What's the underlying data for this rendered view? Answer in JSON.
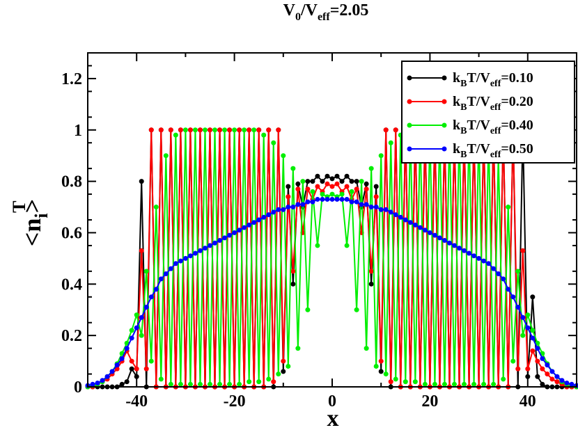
{
  "chart_data": {
    "type": "line",
    "title": {
      "main": "V",
      "sub0": "0",
      "slash": "/V",
      "sub1": "eff",
      "rest": "=2.05"
    },
    "xlabel": "x",
    "ylabel": {
      "main": "<n",
      "sub": "i",
      "close": ">",
      "sup": "T"
    },
    "xlim": [
      -50,
      50
    ],
    "ylim": [
      0,
      1.3
    ],
    "xticks": [
      -40,
      -20,
      0,
      20,
      40
    ],
    "xtick_labels": [
      "-40",
      "-20",
      "0",
      "20",
      "40"
    ],
    "yticks": [
      0,
      0.2,
      0.4,
      0.6,
      0.8,
      1.0,
      1.2
    ],
    "ytick_labels": [
      "0",
      "0.2",
      "0.4",
      "0.6",
      "0.8",
      "1",
      "1.2"
    ],
    "legend_position": "top-right",
    "series": [
      {
        "name": "kBT/Veff=0.10",
        "label": {
          "k": "k",
          "ksub": "B",
          "T": "T/V",
          "vsub": "eff",
          "val": "=0.10"
        },
        "color": "#000000",
        "x": [
          -50,
          -49,
          -48,
          -47,
          -46,
          -45,
          -44,
          -43,
          -42,
          -41,
          -40,
          -39,
          -38,
          -37,
          -36,
          -35,
          -34,
          -33,
          -32,
          -31,
          -30,
          -29,
          -28,
          -27,
          -26,
          -25,
          -24,
          -23,
          -22,
          -21,
          -20,
          -19,
          -18,
          -17,
          -16,
          -15,
          -14,
          -13,
          -12,
          -11,
          -10,
          -9,
          -8,
          -7,
          -6,
          -5,
          -4,
          -3,
          -2,
          -1,
          0,
          1,
          2,
          3,
          4,
          5,
          6,
          7,
          8,
          9,
          10,
          11,
          12,
          13,
          14,
          15,
          16,
          17,
          18,
          19,
          20,
          21,
          22,
          23,
          24,
          25,
          26,
          27,
          28,
          29,
          30,
          31,
          32,
          33,
          34,
          35,
          36,
          37,
          38,
          39,
          40,
          41,
          42,
          43,
          44,
          45,
          46,
          47,
          48,
          49,
          50
        ],
        "y": [
          0,
          0,
          0,
          0,
          0,
          0,
          0,
          0.01,
          0.02,
          0.07,
          0.04,
          0.8,
          0,
          1,
          0,
          1,
          0,
          1,
          0,
          1,
          0,
          1,
          0,
          1,
          0,
          1,
          0,
          1,
          0,
          1,
          0,
          1,
          0,
          1,
          0,
          1,
          0,
          1,
          0,
          1,
          0.06,
          0.78,
          0.4,
          0.79,
          0.7,
          0.8,
          0.8,
          0.82,
          0.8,
          0.82,
          0.81,
          0.82,
          0.8,
          0.82,
          0.8,
          0.8,
          0.7,
          0.79,
          0.4,
          0.78,
          0.06,
          1,
          0,
          1,
          0,
          1,
          0,
          1,
          0,
          1,
          0,
          1,
          0,
          1,
          0,
          1,
          0,
          1,
          0,
          1,
          0,
          1,
          0,
          1,
          0,
          1,
          0,
          1,
          0,
          1,
          0.04,
          0.35,
          0.04,
          0.01,
          0,
          0,
          0,
          0,
          0,
          0,
          0
        ]
      },
      {
        "name": "kBT/Veff=0.20",
        "label": {
          "k": "k",
          "ksub": "B",
          "T": "T/V",
          "vsub": "eff",
          "val": "=0.20"
        },
        "color": "#ff0000",
        "x": [
          -50,
          -49,
          -48,
          -47,
          -46,
          -45,
          -44,
          -43,
          -42,
          -41,
          -40,
          -39,
          -38,
          -37,
          -36,
          -35,
          -34,
          -33,
          -32,
          -31,
          -30,
          -29,
          -28,
          -27,
          -26,
          -25,
          -24,
          -23,
          -22,
          -21,
          -20,
          -19,
          -18,
          -17,
          -16,
          -15,
          -14,
          -13,
          -12,
          -11,
          -10,
          -9,
          -8,
          -7,
          -6,
          -5,
          -4,
          -3,
          -2,
          -1,
          0,
          1,
          2,
          3,
          4,
          5,
          6,
          7,
          8,
          9,
          10,
          11,
          12,
          13,
          14,
          15,
          16,
          17,
          18,
          19,
          20,
          21,
          22,
          23,
          24,
          25,
          26,
          27,
          28,
          29,
          30,
          31,
          32,
          33,
          34,
          35,
          36,
          37,
          38,
          39,
          40,
          41,
          42,
          43,
          44,
          45,
          46,
          47,
          48,
          49,
          50
        ],
        "y": [
          0,
          0,
          0.01,
          0.02,
          0.03,
          0.05,
          0.07,
          0.1,
          0.14,
          0.1,
          0.07,
          0.53,
          0.07,
          1,
          0,
          1,
          0,
          1,
          0,
          1,
          0,
          1,
          0,
          1,
          0,
          1,
          0,
          1,
          0,
          1,
          0,
          1,
          0,
          1,
          0,
          1,
          0,
          1,
          0.02,
          1,
          0.1,
          0.74,
          0.45,
          0.77,
          0.6,
          0.77,
          0.73,
          0.78,
          0.76,
          0.79,
          0.78,
          0.79,
          0.76,
          0.78,
          0.73,
          0.77,
          0.6,
          0.77,
          0.45,
          0.74,
          0.1,
          1,
          0.02,
          1,
          0,
          1,
          0,
          1,
          0,
          1,
          0,
          1,
          0,
          1,
          0,
          1,
          0,
          1,
          0,
          1,
          0,
          1,
          0,
          1,
          0,
          1,
          0,
          1,
          0.07,
          0.53,
          0.07,
          0.14,
          0.1,
          0.07,
          0.05,
          0.03,
          0.02,
          0.01,
          0,
          0,
          0
        ]
      },
      {
        "name": "kBT/Veff=0.40",
        "label": {
          "k": "k",
          "ksub": "B",
          "T": "T/V",
          "vsub": "eff",
          "val": "=0.40"
        },
        "color": "#00ee00",
        "x": [
          -50,
          -49,
          -48,
          -47,
          -46,
          -45,
          -44,
          -43,
          -42,
          -41,
          -40,
          -39,
          -38,
          -37,
          -36,
          -35,
          -34,
          -33,
          -32,
          -31,
          -30,
          -29,
          -28,
          -27,
          -26,
          -25,
          -24,
          -23,
          -22,
          -21,
          -20,
          -19,
          -18,
          -17,
          -16,
          -15,
          -14,
          -13,
          -12,
          -11,
          -10,
          -9,
          -8,
          -7,
          -6,
          -5,
          -4,
          -3,
          -2,
          -1,
          0,
          1,
          2,
          3,
          4,
          5,
          6,
          7,
          8,
          9,
          10,
          11,
          12,
          13,
          14,
          15,
          16,
          17,
          18,
          19,
          20,
          21,
          22,
          23,
          24,
          25,
          26,
          27,
          28,
          29,
          30,
          31,
          32,
          33,
          34,
          35,
          36,
          37,
          38,
          39,
          40,
          41,
          42,
          43,
          44,
          45,
          46,
          47,
          48,
          49,
          50
        ],
        "y": [
          0,
          0.005,
          0.01,
          0.02,
          0.04,
          0.06,
          0.09,
          0.13,
          0.17,
          0.22,
          0.28,
          0.2,
          0.45,
          0.1,
          0.7,
          0.03,
          0.9,
          0.01,
          0.98,
          0.01,
          1,
          0.01,
          1,
          0.01,
          1,
          0.01,
          1,
          0.01,
          1,
          0.01,
          1,
          0.01,
          1,
          0.02,
          1,
          0.02,
          0.98,
          0.03,
          0.95,
          0.05,
          0.9,
          0.08,
          0.85,
          0.15,
          0.8,
          0.3,
          0.76,
          0.55,
          0.75,
          0.74,
          0.75,
          0.74,
          0.75,
          0.55,
          0.76,
          0.3,
          0.8,
          0.15,
          0.85,
          0.08,
          0.9,
          0.05,
          0.95,
          0.03,
          0.98,
          0.02,
          1,
          0.02,
          1,
          0.01,
          1,
          0.01,
          1,
          0.01,
          1,
          0.01,
          1,
          0.01,
          1,
          0.01,
          1,
          0.01,
          0.98,
          0.01,
          0.9,
          0.03,
          0.7,
          0.1,
          0.45,
          0.2,
          0.28,
          0.22,
          0.17,
          0.13,
          0.09,
          0.06,
          0.04,
          0.02,
          0.01,
          0.005,
          0
        ]
      },
      {
        "name": "kBT/Veff=0.50",
        "label": {
          "k": "k",
          "ksub": "B",
          "T": "T/V",
          "vsub": "eff",
          "val": "=0.50"
        },
        "color": "#0000ff",
        "x": [
          -50,
          -49,
          -48,
          -47,
          -46,
          -45,
          -44,
          -43,
          -42,
          -41,
          -40,
          -39,
          -38,
          -37,
          -36,
          -35,
          -34,
          -33,
          -32,
          -31,
          -30,
          -29,
          -28,
          -27,
          -26,
          -25,
          -24,
          -23,
          -22,
          -21,
          -20,
          -19,
          -18,
          -17,
          -16,
          -15,
          -14,
          -13,
          -12,
          -11,
          -10,
          -9,
          -8,
          -7,
          -6,
          -5,
          -4,
          -3,
          -2,
          -1,
          0,
          1,
          2,
          3,
          4,
          5,
          6,
          7,
          8,
          9,
          10,
          11,
          12,
          13,
          14,
          15,
          16,
          17,
          18,
          19,
          20,
          21,
          22,
          23,
          24,
          25,
          26,
          27,
          28,
          29,
          30,
          31,
          32,
          33,
          34,
          35,
          36,
          37,
          38,
          39,
          40,
          41,
          42,
          43,
          44,
          45,
          46,
          47,
          48,
          49,
          50
        ],
        "y": [
          0.005,
          0.01,
          0.015,
          0.025,
          0.04,
          0.06,
          0.085,
          0.11,
          0.15,
          0.19,
          0.23,
          0.27,
          0.31,
          0.35,
          0.38,
          0.42,
          0.44,
          0.46,
          0.48,
          0.49,
          0.5,
          0.51,
          0.52,
          0.53,
          0.54,
          0.55,
          0.56,
          0.57,
          0.58,
          0.59,
          0.6,
          0.61,
          0.62,
          0.63,
          0.64,
          0.65,
          0.66,
          0.67,
          0.68,
          0.69,
          0.69,
          0.7,
          0.7,
          0.71,
          0.71,
          0.72,
          0.72,
          0.73,
          0.73,
          0.73,
          0.73,
          0.73,
          0.73,
          0.73,
          0.72,
          0.72,
          0.71,
          0.71,
          0.7,
          0.7,
          0.69,
          0.69,
          0.68,
          0.67,
          0.66,
          0.65,
          0.64,
          0.63,
          0.62,
          0.61,
          0.6,
          0.59,
          0.58,
          0.57,
          0.56,
          0.55,
          0.54,
          0.53,
          0.52,
          0.51,
          0.5,
          0.49,
          0.48,
          0.46,
          0.44,
          0.42,
          0.38,
          0.35,
          0.31,
          0.27,
          0.23,
          0.19,
          0.15,
          0.11,
          0.085,
          0.06,
          0.04,
          0.025,
          0.015,
          0.01,
          0.005
        ]
      }
    ]
  }
}
